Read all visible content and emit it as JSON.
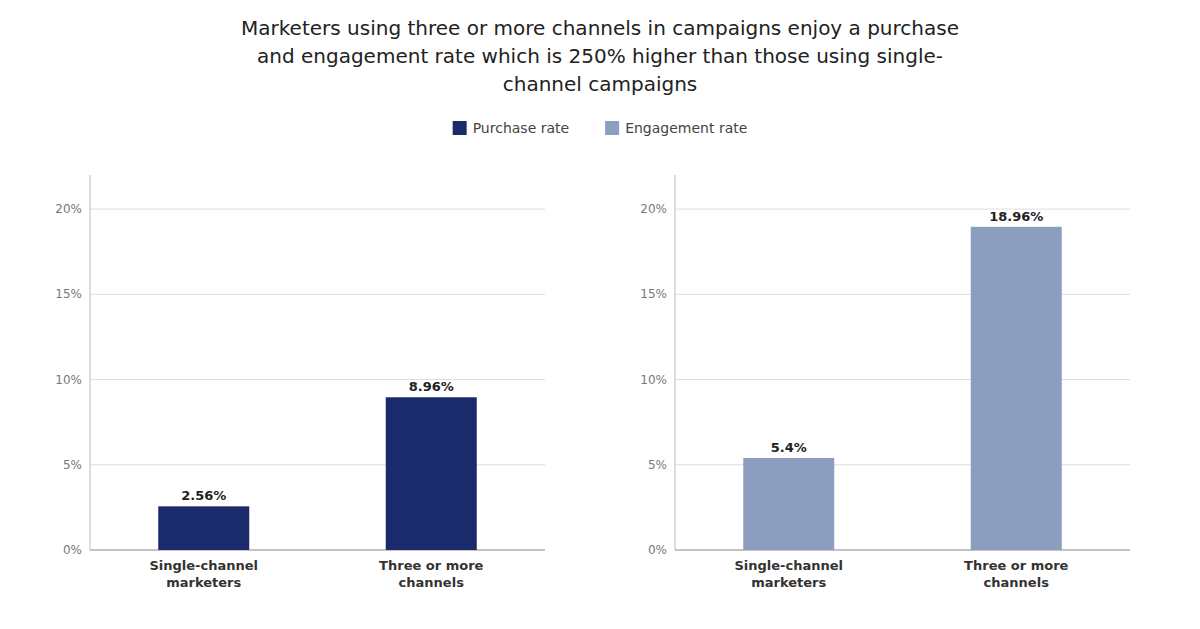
{
  "title": "Marketers using three or more channels in campaigns enjoy a purchase and engagement rate which is 250% higher than those using single-channel campaigns",
  "chart_data": [
    {
      "type": "bar",
      "categories": [
        "Single-channel\nmarketers",
        "Three or more\nchannels"
      ],
      "series": [
        {
          "name": "Purchase rate",
          "color": "#1B2A6B",
          "values": [
            2.56,
            8.96
          ],
          "value_labels": [
            "2.56%",
            "8.96%"
          ]
        }
      ],
      "ylim": [
        0,
        22
      ],
      "yticks": [
        {
          "value": 0,
          "label": "0%"
        },
        {
          "value": 5,
          "label": "5%"
        },
        {
          "value": 10,
          "label": "10%"
        },
        {
          "value": 15,
          "label": "15%"
        },
        {
          "value": 20,
          "label": "20%"
        }
      ],
      "grid": true,
      "data_labels": true,
      "legend": "top"
    },
    {
      "type": "bar",
      "categories": [
        "Single-channel\nmarketers",
        "Three or more\nchannels"
      ],
      "series": [
        {
          "name": "Engagement rate",
          "color": "#8B9EC0",
          "values": [
            5.4,
            18.96
          ],
          "value_labels": [
            "5.4%",
            "18.96%"
          ]
        }
      ],
      "ylim": [
        0,
        22
      ],
      "yticks": [
        {
          "value": 0,
          "label": "0%"
        },
        {
          "value": 5,
          "label": "5%"
        },
        {
          "value": 10,
          "label": "10%"
        },
        {
          "value": 15,
          "label": "15%"
        },
        {
          "value": 20,
          "label": "20%"
        }
      ],
      "grid": true,
      "data_labels": true,
      "legend": "top"
    }
  ]
}
